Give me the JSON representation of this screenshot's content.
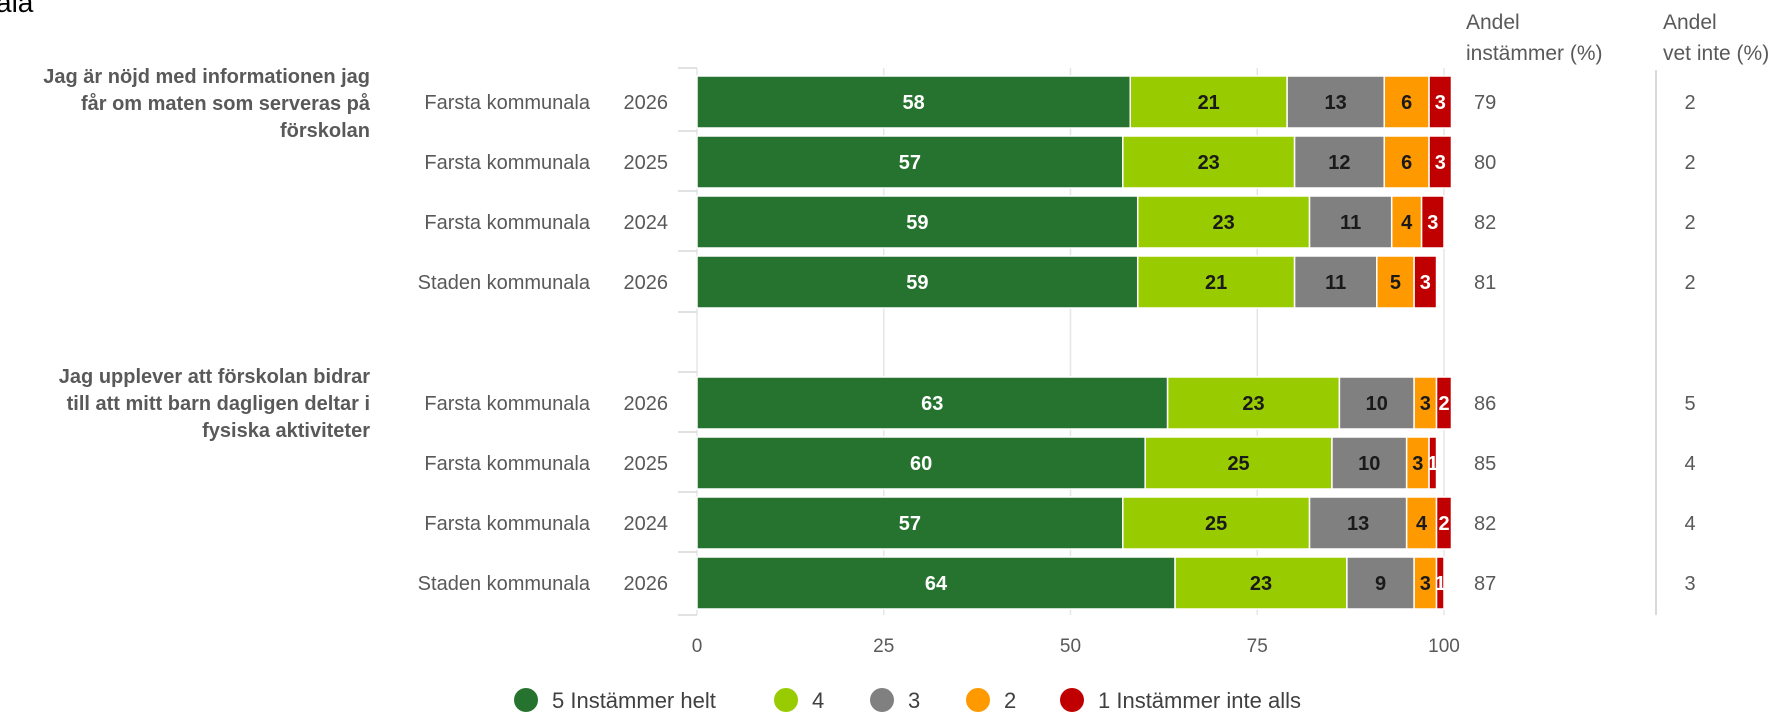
{
  "page_title_fragment": "ala",
  "columns": {
    "agree_header_line1": "Andel",
    "agree_header_line2": "instämmer (%)",
    "dontknow_header_line1": "Andel",
    "dontknow_header_line2": "vet inte (%)"
  },
  "chart_data": {
    "type": "bar",
    "orientation": "horizontal",
    "stacked": true,
    "xlim": [
      0,
      100
    ],
    "x_ticks": [
      "0",
      "25",
      "50",
      "75",
      "100"
    ],
    "grid": true,
    "legend_position": "bottom",
    "series": [
      {
        "name": "5 Instämmer helt",
        "color": "#267330"
      },
      {
        "name": "4",
        "color": "#99cc00"
      },
      {
        "name": "3",
        "color": "#808080"
      },
      {
        "name": "2",
        "color": "#ff9900"
      },
      {
        "name": "1 Instämmer inte alls",
        "color": "#c00000"
      }
    ],
    "questions": [
      {
        "text_lines": [
          "Jag är nöjd med informationen jag",
          "får om maten som serveras på",
          "förskolan"
        ],
        "rows": [
          {
            "unit": "Farsta kommunala",
            "year": "2026",
            "values": [
              58,
              21,
              13,
              6,
              3
            ],
            "agree": "79",
            "dont_know": "2"
          },
          {
            "unit": "Farsta kommunala",
            "year": "2025",
            "values": [
              57,
              23,
              12,
              6,
              3
            ],
            "agree": "80",
            "dont_know": "2"
          },
          {
            "unit": "Farsta kommunala",
            "year": "2024",
            "values": [
              59,
              23,
              11,
              4,
              3
            ],
            "agree": "82",
            "dont_know": "2"
          },
          {
            "unit": "Staden kommunala",
            "year": "2026",
            "values": [
              59,
              21,
              11,
              5,
              3
            ],
            "agree": "81",
            "dont_know": "2"
          }
        ]
      },
      {
        "text_lines": [
          "Jag upplever att förskolan bidrar",
          "till att mitt barn dagligen deltar i",
          "fysiska aktiviteter"
        ],
        "rows": [
          {
            "unit": "Farsta kommunala",
            "year": "2026",
            "values": [
              63,
              23,
              10,
              3,
              2
            ],
            "agree": "86",
            "dont_know": "5"
          },
          {
            "unit": "Farsta kommunala",
            "year": "2025",
            "values": [
              60,
              25,
              10,
              3,
              1
            ],
            "agree": "85",
            "dont_know": "4"
          },
          {
            "unit": "Farsta kommunala",
            "year": "2024",
            "values": [
              57,
              25,
              13,
              4,
              2
            ],
            "agree": "82",
            "dont_know": "4"
          },
          {
            "unit": "Staden kommunala",
            "year": "2026",
            "values": [
              64,
              23,
              9,
              3,
              1
            ],
            "agree": "87",
            "dont_know": "3"
          }
        ]
      }
    ]
  }
}
